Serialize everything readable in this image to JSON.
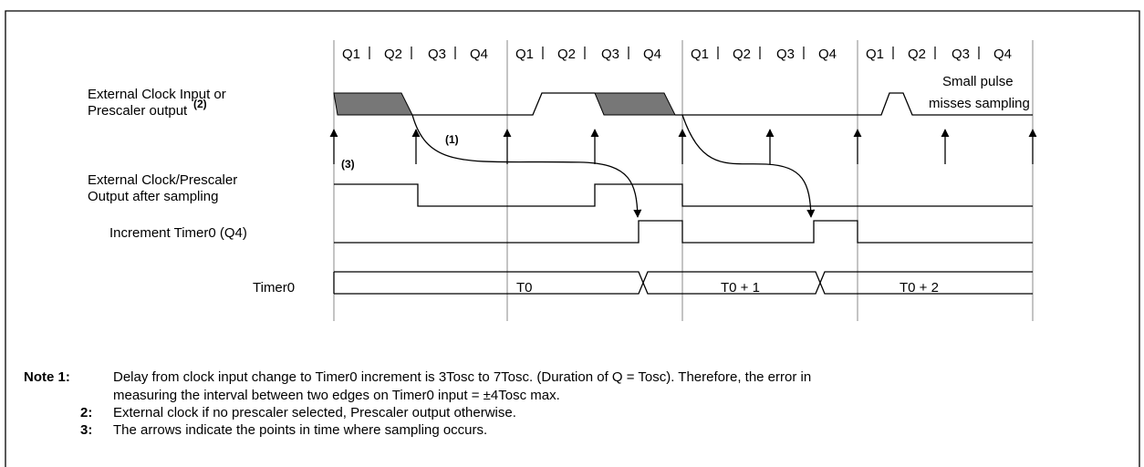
{
  "cycle_labels": [
    "Q1",
    "Q2",
    "Q3",
    "Q4"
  ],
  "signals": {
    "ext_clock": [
      "External Clock Input or",
      "Prescaler output"
    ],
    "ext_clock_note": "(2)",
    "sampled": [
      "External Clock/Prescaler",
      "Output after sampling"
    ],
    "increment": "Increment Timer0 (Q4)",
    "timer": "Timer0"
  },
  "annotations": {
    "delay": "(1)",
    "sampling": "(3)",
    "small_pulse": [
      "Small pulse",
      "misses sampling"
    ]
  },
  "timer_values": [
    "T0",
    "T0 + 1",
    "T0 + 2"
  ],
  "notes": [
    {
      "label": "Note 1:",
      "lines": [
        "Delay from clock input change to Timer0 increment is 3Tosc to 7Tosc. (Duration of Q = Tosc).  Therefore, the error in",
        "measuring the interval between two edges on Timer0 input = ±4Tosc max."
      ]
    },
    {
      "label": "2:",
      "lines": [
        "External clock if no prescaler selected, Prescaler output otherwise."
      ]
    },
    {
      "label": "3:",
      "lines": [
        "The arrows indicate the points in time where sampling occurs."
      ]
    }
  ]
}
